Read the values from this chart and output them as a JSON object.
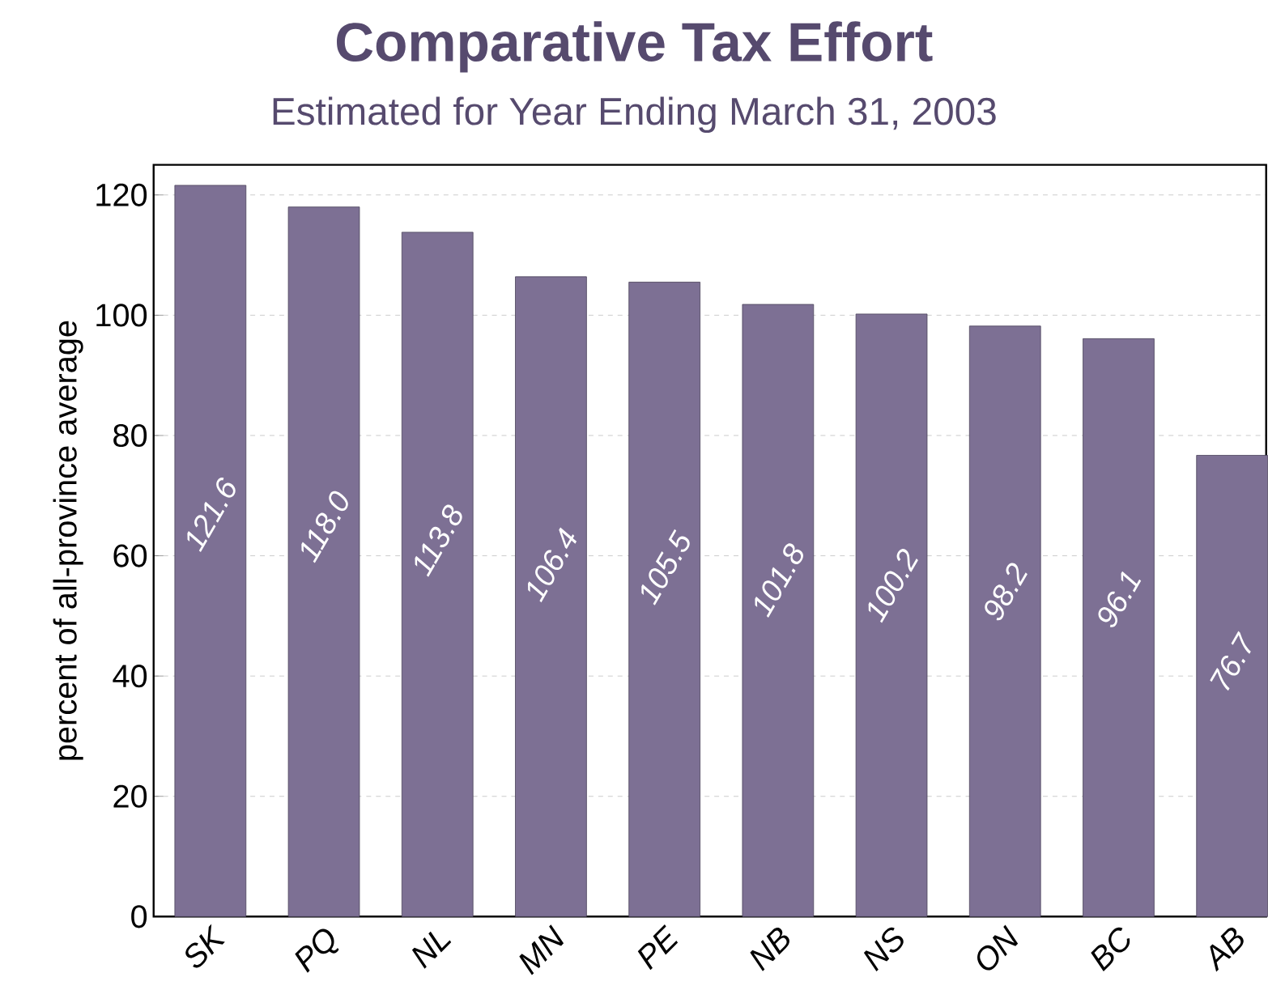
{
  "chart_data": {
    "type": "bar",
    "title": "Comparative Tax Effort",
    "subtitle": "Estimated for Year Ending March 31, 2003",
    "ylabel": "percent of all-province average",
    "categories": [
      "SK",
      "PQ",
      "NL",
      "MN",
      "PE",
      "NB",
      "NS",
      "ON",
      "BC",
      "AB"
    ],
    "values": [
      121.6,
      118.0,
      113.8,
      106.4,
      105.5,
      101.8,
      100.2,
      98.2,
      96.1,
      76.7
    ],
    "value_labels": [
      "121.6",
      "118.0",
      "113.8",
      "106.4",
      "105.5",
      "101.8",
      "100.2",
      "98.2",
      "96.1",
      "76.7"
    ],
    "color": "#7d7094",
    "ylim": [
      0,
      125
    ],
    "yticks": [
      0,
      20,
      40,
      60,
      80,
      100,
      120
    ],
    "grid": "y"
  }
}
